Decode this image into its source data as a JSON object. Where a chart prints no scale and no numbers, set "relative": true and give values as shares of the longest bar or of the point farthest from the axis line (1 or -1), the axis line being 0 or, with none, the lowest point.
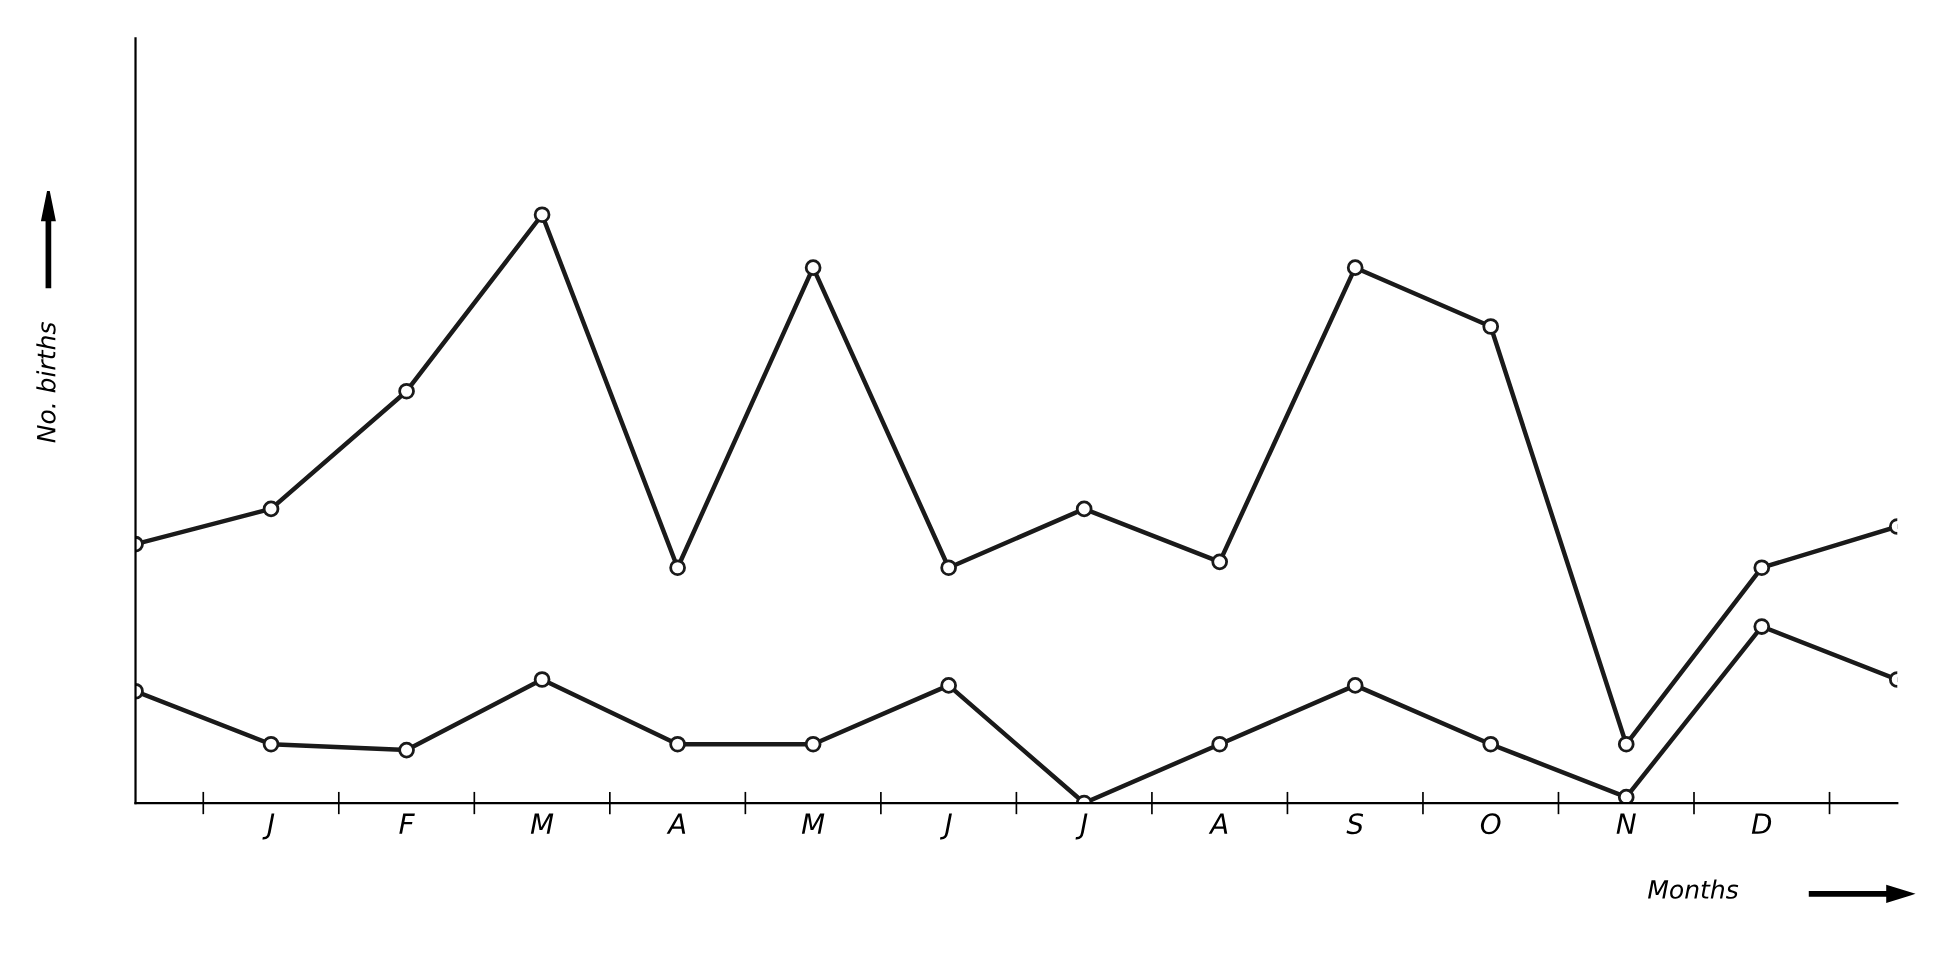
{
  "chart_data": {
    "type": "line",
    "relative": true,
    "xlabel": "Months",
    "ylabel": "No. births",
    "categories": [
      null,
      "J",
      "F",
      "M",
      "A",
      "M",
      "J",
      "J",
      "A",
      "S",
      "O",
      "N",
      "D",
      null
    ],
    "series": [
      {
        "color": "#1a1a1a",
        "values": [
          0.44,
          0.5,
          0.7,
          1,
          0.4,
          0.91,
          0.4,
          0.5,
          0.41,
          0.91,
          0.81,
          0.1,
          0.4,
          0.47
        ]
      },
      {
        "color": "#1a1a1a",
        "values": [
          0.19,
          0.1,
          0.09,
          0.21,
          0.1,
          0.1,
          0.2,
          0,
          0.1,
          0.2,
          0.1,
          0.01,
          0.3,
          0.21
        ]
      }
    ],
    "marker": "circle",
    "line_style": "solid"
  }
}
